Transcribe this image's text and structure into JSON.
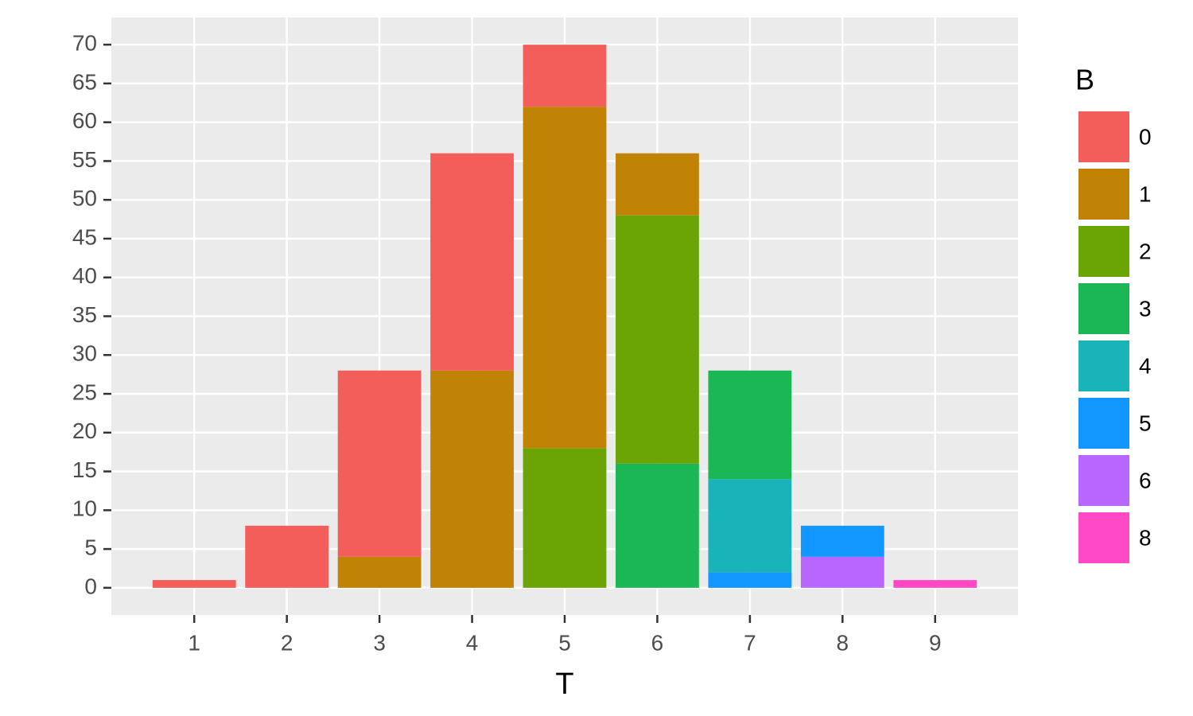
{
  "chart_data": {
    "type": "stacked_bar",
    "x_label": "T",
    "legend_title": "B",
    "categories": [
      "1",
      "2",
      "3",
      "4",
      "5",
      "6",
      "7",
      "8",
      "9"
    ],
    "series": [
      {
        "name": "0",
        "color": "#F35E5A",
        "values": [
          1,
          8,
          24,
          28,
          8,
          null,
          null,
          null,
          null
        ]
      },
      {
        "name": "1",
        "color": "#C08305",
        "values": [
          null,
          null,
          4,
          28,
          44,
          8,
          null,
          null,
          null
        ]
      },
      {
        "name": "2",
        "color": "#6BA505",
        "values": [
          null,
          null,
          null,
          null,
          18,
          32,
          null,
          null,
          null
        ]
      },
      {
        "name": "3",
        "color": "#1AB754",
        "values": [
          null,
          null,
          null,
          null,
          null,
          16,
          14,
          null,
          null
        ]
      },
      {
        "name": "4",
        "color": "#19B3BA",
        "values": [
          null,
          null,
          null,
          null,
          null,
          null,
          12,
          null,
          null
        ]
      },
      {
        "name": "5",
        "color": "#1296FF",
        "values": [
          null,
          null,
          null,
          null,
          null,
          null,
          2,
          4,
          null
        ]
      },
      {
        "name": "6",
        "color": "#B866FF",
        "values": [
          null,
          null,
          null,
          null,
          null,
          null,
          null,
          4,
          null
        ]
      },
      {
        "name": "8",
        "color": "#FF48C6",
        "values": [
          null,
          null,
          null,
          null,
          null,
          null,
          null,
          null,
          1
        ]
      }
    ],
    "ylim": [
      -3.5,
      73.5
    ],
    "yticks": [
      0,
      5,
      10,
      15,
      20,
      25,
      30,
      35,
      40,
      45,
      50,
      55,
      60,
      65,
      70
    ],
    "grid": true,
    "legend_position": "right"
  }
}
